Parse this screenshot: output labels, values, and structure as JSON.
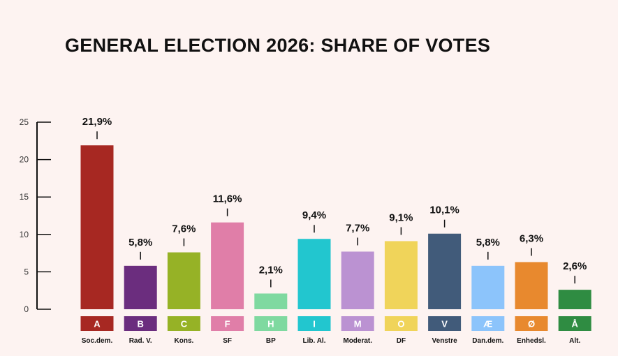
{
  "chart_data": {
    "type": "bar",
    "title": "GENERAL ELECTION 2026: SHARE OF VOTES",
    "xlabel": "",
    "ylabel": "",
    "ylim": [
      0,
      25
    ],
    "yticks": [
      0,
      5,
      10,
      15,
      20,
      25
    ],
    "grid": false,
    "legend": "none",
    "categories": [
      "Soc.dem.",
      "Rad. V.",
      "Kons.",
      "SF",
      "BP",
      "Lib. Al.",
      "Moderat.",
      "DF",
      "Venstre",
      "Dan.dem.",
      "Enhedsl.",
      "Alt."
    ],
    "letters": [
      "A",
      "B",
      "C",
      "F",
      "H",
      "I",
      "M",
      "O",
      "V",
      "Æ",
      "Ø",
      "Å"
    ],
    "values": [
      21.9,
      5.8,
      7.6,
      11.6,
      2.1,
      9.4,
      7.7,
      9.1,
      10.1,
      5.8,
      6.3,
      2.6
    ],
    "value_labels": [
      "21,9%",
      "5,8%",
      "7,6%",
      "11,6%",
      "2,1%",
      "9,4%",
      "7,7%",
      "9,1%",
      "10,1%",
      "5,8%",
      "6,3%",
      "2,6%"
    ],
    "colors": [
      "#a72822",
      "#6b2d7e",
      "#96b226",
      "#e07ea8",
      "#7fd9a0",
      "#22c6cf",
      "#bb92d2",
      "#f0d45a",
      "#415b7a",
      "#8cc4fb",
      "#e8892e",
      "#2f8c42"
    ]
  }
}
